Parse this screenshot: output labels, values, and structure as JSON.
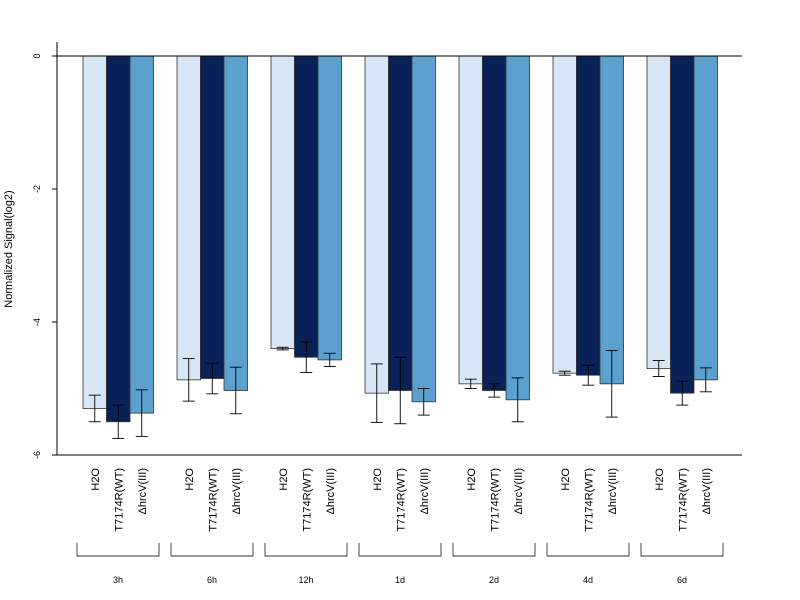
{
  "chart_data": {
    "type": "bar",
    "ylabel": "Normalized Signal(log2)",
    "ylim": [
      -6,
      0.2
    ],
    "yticks": [
      0,
      -2,
      -4,
      -6
    ],
    "groups": [
      "3h",
      "6h",
      "12h",
      "1d",
      "2d",
      "4d",
      "6d"
    ],
    "series": [
      {
        "name": "H2O",
        "color": "#d6e6f5",
        "values": [
          -5.3,
          -4.87,
          -4.4,
          -5.07,
          -4.93,
          -4.77,
          -4.7
        ],
        "errors": [
          0.2,
          0.32,
          0.02,
          0.44,
          0.07,
          0.03,
          0.12
        ]
      },
      {
        "name": "T7174R(WT)",
        "color": "#0a2158",
        "values": [
          -5.5,
          -4.85,
          -4.53,
          -5.03,
          -5.03,
          -4.8,
          -5.07
        ],
        "errors": [
          0.25,
          0.23,
          0.23,
          0.5,
          0.1,
          0.15,
          0.18
        ]
      },
      {
        "name": "ΔhrcV(III)",
        "color": "#5ca0cd",
        "values": [
          -5.37,
          -5.03,
          -4.57,
          -5.2,
          -5.17,
          -4.93,
          -4.87
        ],
        "errors": [
          0.35,
          0.35,
          0.1,
          0.2,
          0.33,
          0.5,
          0.18
        ]
      }
    ]
  }
}
